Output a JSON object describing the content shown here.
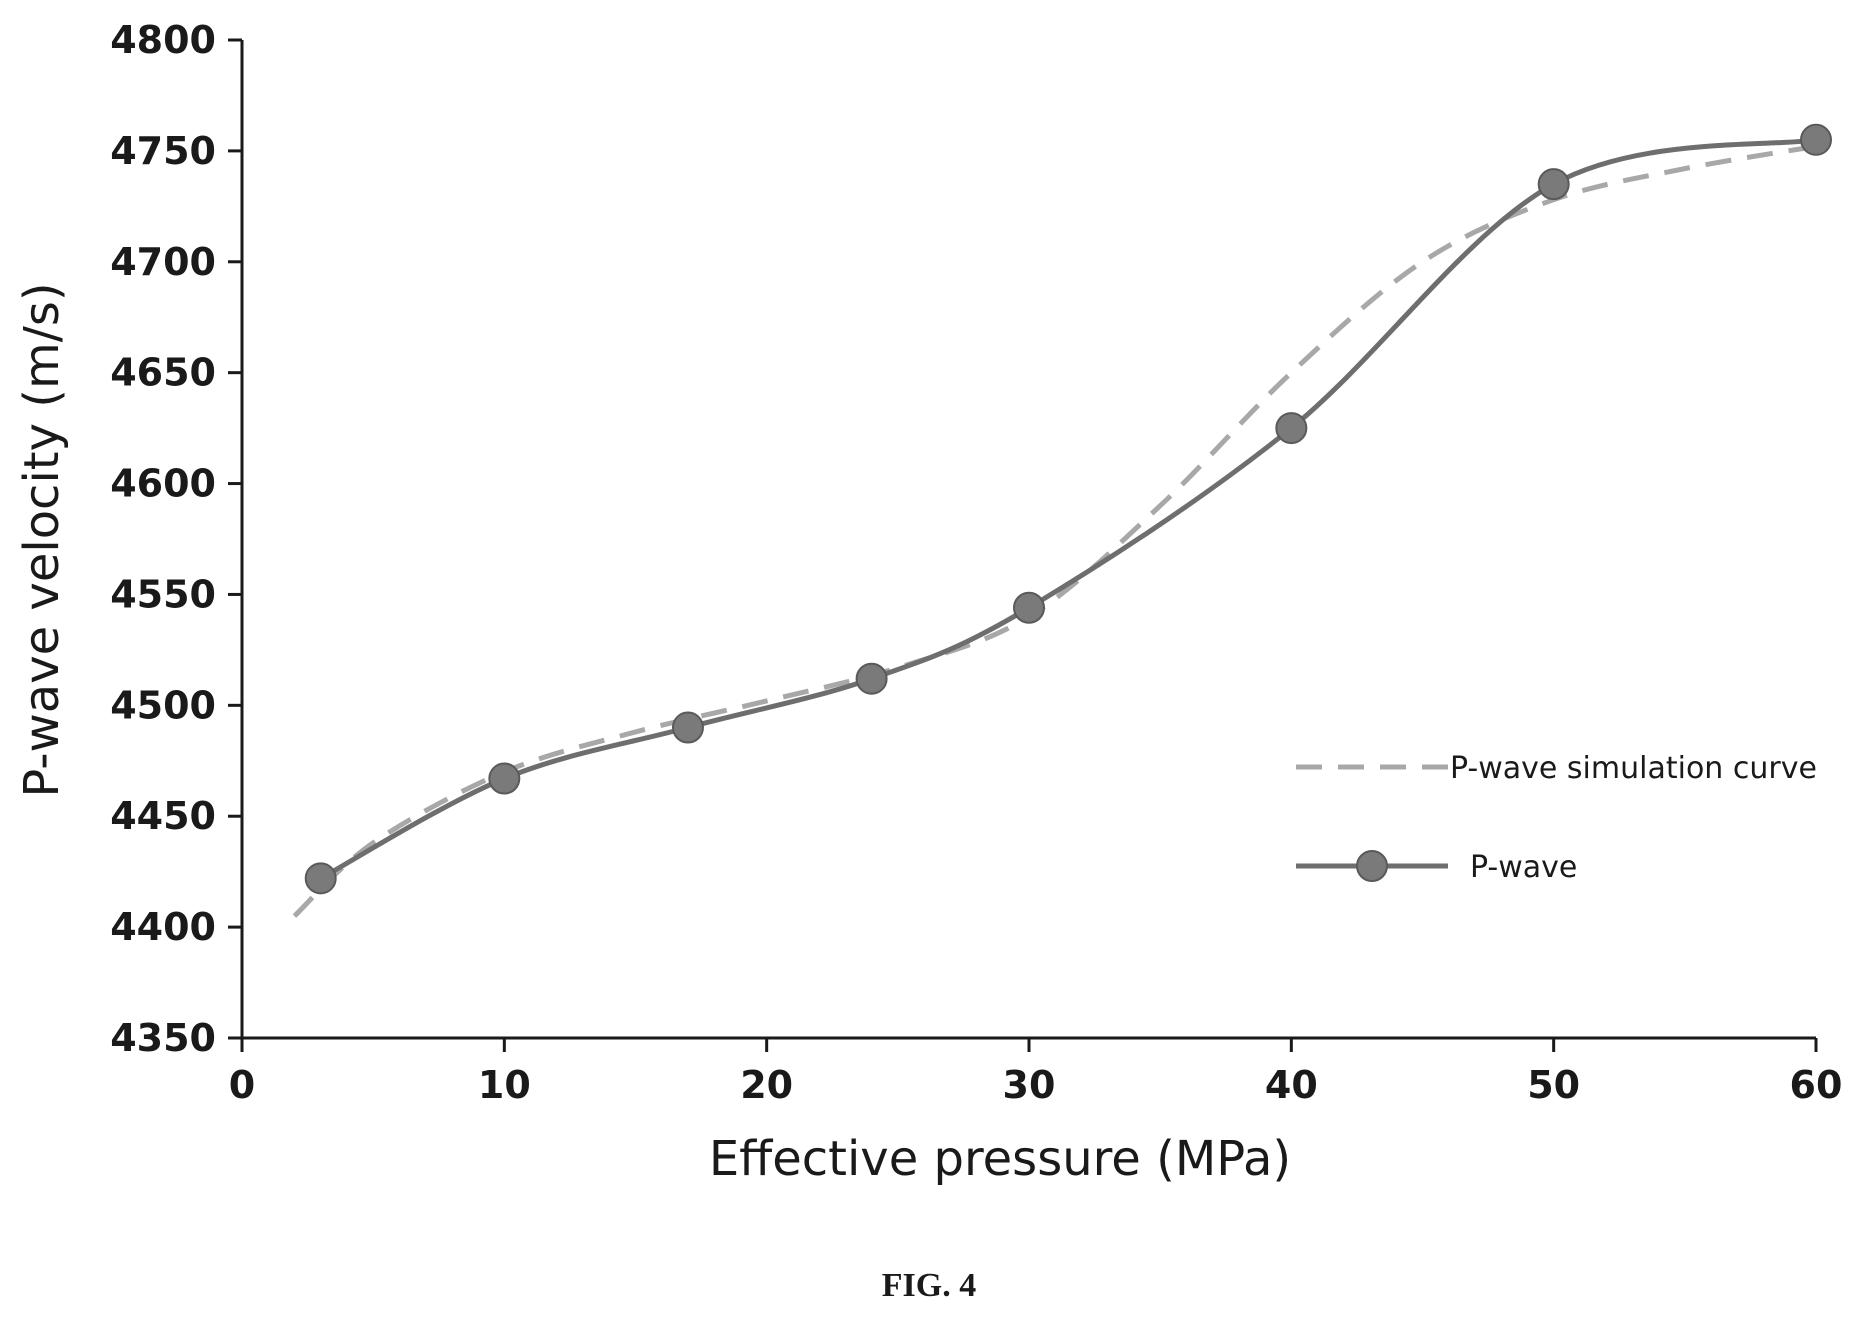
{
  "chart_data": {
    "type": "line",
    "xlabel": "Effective pressure (MPa)",
    "ylabel": "P-wave velocity (m/s)",
    "xlim": [
      0,
      60
    ],
    "ylim": [
      4350,
      4800
    ],
    "x_ticks": [
      "0",
      "10",
      "20",
      "30",
      "40",
      "50",
      "60"
    ],
    "y_ticks": [
      "4350",
      "4400",
      "4450",
      "4500",
      "4550",
      "4600",
      "4650",
      "4700",
      "4750",
      "4800"
    ],
    "grid": false,
    "legend_position": "right",
    "series": [
      {
        "name": "P-wave simulation curve",
        "style": "dashed",
        "color": "#a8a8a8",
        "x": [
          2,
          5,
          10,
          15,
          20,
          25,
          30,
          35,
          40,
          45,
          50,
          55,
          60
        ],
        "y": [
          4405,
          4438,
          4470,
          4488,
          4502,
          4517,
          4540,
          4590,
          4650,
          4700,
          4728,
          4742,
          4752
        ]
      },
      {
        "name": "P-wave",
        "style": "solid-markers",
        "color": "#6e6e6e",
        "x": [
          3,
          10,
          17,
          24,
          30,
          40,
          50,
          60
        ],
        "y": [
          4422,
          4467,
          4490,
          4512,
          4544,
          4625,
          4735,
          4755
        ]
      }
    ]
  },
  "caption": "FIG. 4"
}
